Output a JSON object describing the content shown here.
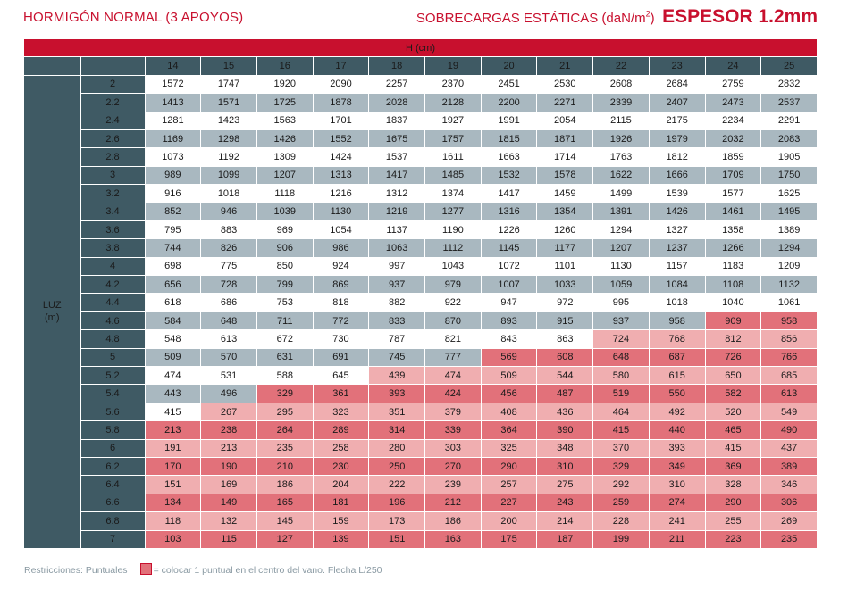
{
  "header": {
    "left_title": "HORMIGÓN NORMAL (3 APOYOS)",
    "right_prefix": "SOBRECARGAS ESTÁTICAS (daN/m",
    "right_sup": "2",
    "right_suffix": ")",
    "right_bold": "ESPESOR 1.2mm"
  },
  "table": {
    "h_label": "H (cm)",
    "luz_label_1": "LUZ",
    "luz_label_2": "(m)",
    "columns": [
      "14",
      "15",
      "16",
      "17",
      "18",
      "19",
      "20",
      "21",
      "22",
      "23",
      "24",
      "25"
    ],
    "rows": [
      {
        "luz": "2",
        "values": [
          "1572",
          "1747",
          "1920",
          "2090",
          "2257",
          "2370",
          "2451",
          "2530",
          "2608",
          "2684",
          "2759",
          "2832"
        ],
        "shades": "wwwwwwwwwwww"
      },
      {
        "luz": "2.2",
        "values": [
          "1413",
          "1571",
          "1725",
          "1878",
          "2028",
          "2128",
          "2200",
          "2271",
          "2339",
          "2407",
          "2473",
          "2537"
        ],
        "shades": "gggggggggggg"
      },
      {
        "luz": "2.4",
        "values": [
          "1281",
          "1423",
          "1563",
          "1701",
          "1837",
          "1927",
          "1991",
          "2054",
          "2115",
          "2175",
          "2234",
          "2291"
        ],
        "shades": "wwwwwwwwwwww"
      },
      {
        "luz": "2.6",
        "values": [
          "1169",
          "1298",
          "1426",
          "1552",
          "1675",
          "1757",
          "1815",
          "1871",
          "1926",
          "1979",
          "2032",
          "2083"
        ],
        "shades": "gggggggggggg"
      },
      {
        "luz": "2.8",
        "values": [
          "1073",
          "1192",
          "1309",
          "1424",
          "1537",
          "1611",
          "1663",
          "1714",
          "1763",
          "1812",
          "1859",
          "1905"
        ],
        "shades": "wwwwwwwwwwww"
      },
      {
        "luz": "3",
        "values": [
          "989",
          "1099",
          "1207",
          "1313",
          "1417",
          "1485",
          "1532",
          "1578",
          "1622",
          "1666",
          "1709",
          "1750"
        ],
        "shades": "gggggggggggg"
      },
      {
        "luz": "3.2",
        "values": [
          "916",
          "1018",
          "1118",
          "1216",
          "1312",
          "1374",
          "1417",
          "1459",
          "1499",
          "1539",
          "1577",
          "1625"
        ],
        "shades": "wwwwwwwwwwww"
      },
      {
        "luz": "3.4",
        "values": [
          "852",
          "946",
          "1039",
          "1130",
          "1219",
          "1277",
          "1316",
          "1354",
          "1391",
          "1426",
          "1461",
          "1495"
        ],
        "shades": "gggggggggggg"
      },
      {
        "luz": "3.6",
        "values": [
          "795",
          "883",
          "969",
          "1054",
          "1137",
          "1190",
          "1226",
          "1260",
          "1294",
          "1327",
          "1358",
          "1389"
        ],
        "shades": "wwwwwwwwwwww"
      },
      {
        "luz": "3.8",
        "values": [
          "744",
          "826",
          "906",
          "986",
          "1063",
          "1112",
          "1145",
          "1177",
          "1207",
          "1237",
          "1266",
          "1294"
        ],
        "shades": "gggggggggggg"
      },
      {
        "luz": "4",
        "values": [
          "698",
          "775",
          "850",
          "924",
          "997",
          "1043",
          "1072",
          "1101",
          "1130",
          "1157",
          "1183",
          "1209"
        ],
        "shades": "wwwwwwwwwwww"
      },
      {
        "luz": "4.2",
        "values": [
          "656",
          "728",
          "799",
          "869",
          "937",
          "979",
          "1007",
          "1033",
          "1059",
          "1084",
          "1108",
          "1132"
        ],
        "shades": "gggggggggggg"
      },
      {
        "luz": "4.4",
        "values": [
          "618",
          "686",
          "753",
          "818",
          "882",
          "922",
          "947",
          "972",
          "995",
          "1018",
          "1040",
          "1061"
        ],
        "shades": "wwwwwwwwwwww"
      },
      {
        "luz": "4.6",
        "values": [
          "584",
          "648",
          "711",
          "772",
          "833",
          "870",
          "893",
          "915",
          "937",
          "958",
          "909",
          "958"
        ],
        "shades": "ggggggggggrr"
      },
      {
        "luz": "4.8",
        "values": [
          "548",
          "613",
          "672",
          "730",
          "787",
          "821",
          "843",
          "863",
          "724",
          "768",
          "812",
          "856"
        ],
        "shades": "wwwwwwwwpppp"
      },
      {
        "luz": "5",
        "values": [
          "509",
          "570",
          "631",
          "691",
          "745",
          "777",
          "569",
          "608",
          "648",
          "687",
          "726",
          "766"
        ],
        "shades": "ggggggrrrrrr"
      },
      {
        "luz": "5.2",
        "values": [
          "474",
          "531",
          "588",
          "645",
          "439",
          "474",
          "509",
          "544",
          "580",
          "615",
          "650",
          "685"
        ],
        "shades": "wwwwpppppppp"
      },
      {
        "luz": "5.4",
        "values": [
          "443",
          "496",
          "329",
          "361",
          "393",
          "424",
          "456",
          "487",
          "519",
          "550",
          "582",
          "613"
        ],
        "shades": "ggrrrrrrrrrr"
      },
      {
        "luz": "5.6",
        "values": [
          "415",
          "267",
          "295",
          "323",
          "351",
          "379",
          "408",
          "436",
          "464",
          "492",
          "520",
          "549"
        ],
        "shades": "wppppppppppp"
      },
      {
        "luz": "5.8",
        "values": [
          "213",
          "238",
          "264",
          "289",
          "314",
          "339",
          "364",
          "390",
          "415",
          "440",
          "465",
          "490"
        ],
        "shades": "rrrrrrrrrrrr"
      },
      {
        "luz": "6",
        "values": [
          "191",
          "213",
          "235",
          "258",
          "280",
          "303",
          "325",
          "348",
          "370",
          "393",
          "415",
          "437"
        ],
        "shades": "pppppppppppp"
      },
      {
        "luz": "6.2",
        "values": [
          "170",
          "190",
          "210",
          "230",
          "250",
          "270",
          "290",
          "310",
          "329",
          "349",
          "369",
          "389"
        ],
        "shades": "rrrrrrrrrrrr"
      },
      {
        "luz": "6.4",
        "values": [
          "151",
          "169",
          "186",
          "204",
          "222",
          "239",
          "257",
          "275",
          "292",
          "310",
          "328",
          "346"
        ],
        "shades": "pppppppppppp"
      },
      {
        "luz": "6.6",
        "values": [
          "134",
          "149",
          "165",
          "181",
          "196",
          "212",
          "227",
          "243",
          "259",
          "274",
          "290",
          "306"
        ],
        "shades": "rrrrrrrrrrrr"
      },
      {
        "luz": "6.8",
        "values": [
          "118",
          "132",
          "145",
          "159",
          "173",
          "186",
          "200",
          "214",
          "228",
          "241",
          "255",
          "269"
        ],
        "shades": "pppppppppppp"
      },
      {
        "luz": "7",
        "values": [
          "103",
          "115",
          "127",
          "139",
          "151",
          "163",
          "175",
          "187",
          "199",
          "211",
          "223",
          "235"
        ],
        "shades": "rrrrrrrrrrrr"
      }
    ]
  },
  "legend": {
    "label": "Restricciones: Puntuales",
    "text": "= colocar 1 puntual en el centro del vano. Flecha L/250"
  },
  "colors": {
    "brand_red": "#c8102e",
    "header_slate": "#3f5a64",
    "grey_cell": "#a9b8c0",
    "pink_cell": "#f0aeb0",
    "red_cell": "#e2717a"
  }
}
